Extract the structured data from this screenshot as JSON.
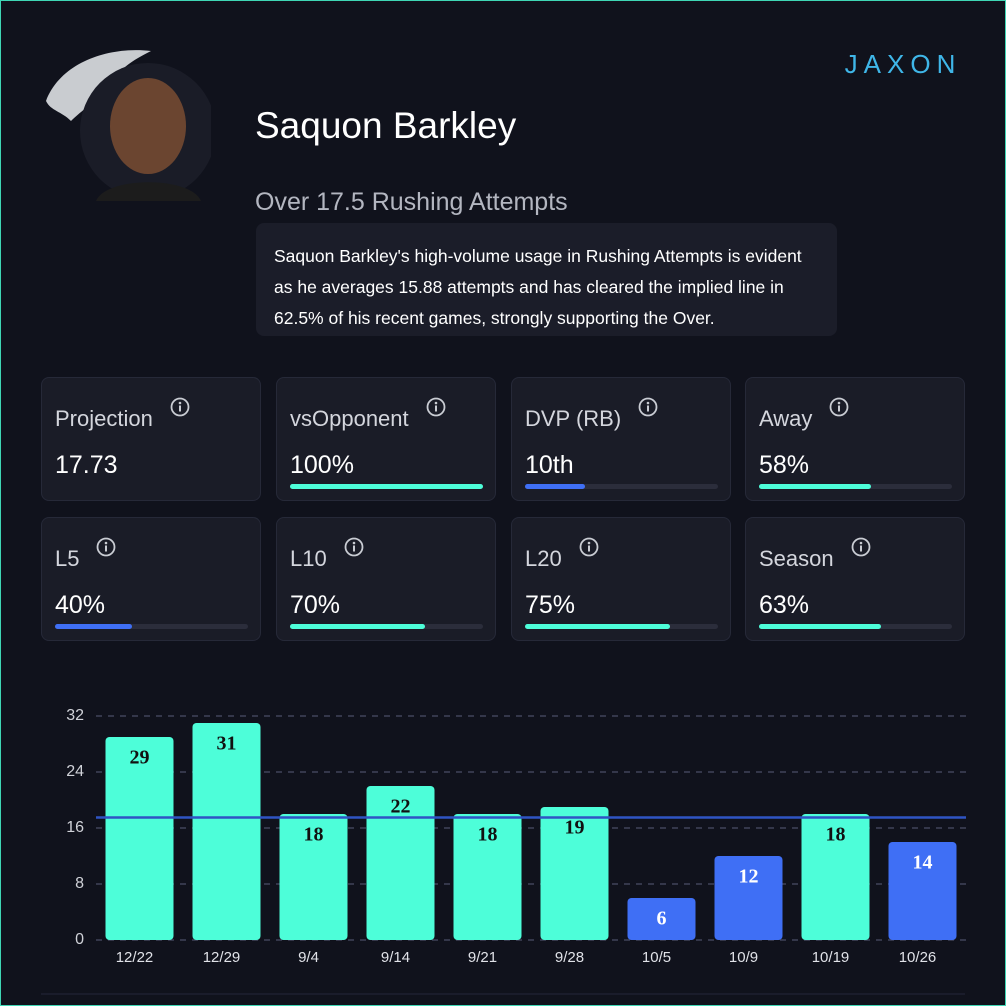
{
  "brand": "JAXON",
  "header": {
    "player_name": "Saquon Barkley",
    "prop": "Over 17.5 Rushing Attempts",
    "analysis": "Saquon Barkley's high-volume usage in Rushing Attempts is evident as he averages 15.88 attempts and has cleared the implied line in 62.5% of his recent games, strongly supporting the Over."
  },
  "stats": [
    {
      "label": "Projection",
      "value": "17.73"
    },
    {
      "label": "vsOpponent",
      "value": "100%",
      "fill": 100,
      "color": "#4dfed9"
    },
    {
      "label": "DVP (RB)",
      "value": "10th",
      "fill": 31,
      "color": "#3f6ff5"
    },
    {
      "label": "Away",
      "value": "58%",
      "fill": 58,
      "color": "#4dfed9"
    },
    {
      "label": "L5",
      "value": "40%",
      "fill": 40,
      "color": "#3f6ff5"
    },
    {
      "label": "L10",
      "value": "70%",
      "fill": 70,
      "color": "#4dfed9"
    },
    {
      "label": "L20",
      "value": "75%",
      "fill": 75,
      "color": "#4dfed9"
    },
    {
      "label": "Season",
      "value": "63%",
      "fill": 63,
      "color": "#4dfed9"
    }
  ],
  "chart_data": {
    "type": "bar",
    "categories": [
      "12/22",
      "12/29",
      "9/4",
      "9/14",
      "9/21",
      "9/28",
      "10/5",
      "10/9",
      "10/19",
      "10/26"
    ],
    "values": [
      29,
      31,
      18,
      22,
      18,
      19,
      6,
      12,
      18,
      14
    ],
    "colors": [
      "#4dfed9",
      "#4dfed9",
      "#4dfed9",
      "#4dfed9",
      "#4dfed9",
      "#4dfed9",
      "#3f6ff5",
      "#3f6ff5",
      "#4dfed9",
      "#3f6ff5"
    ],
    "reference_line": 17.5,
    "reference_color": "#2f54c4",
    "ylim": [
      0,
      32
    ],
    "yticks": [
      0,
      8,
      16,
      24,
      32
    ],
    "grid": true
  }
}
